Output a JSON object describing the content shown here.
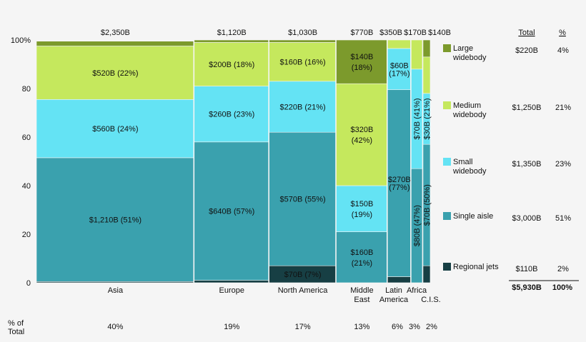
{
  "chart_data": {
    "type": "marimekko",
    "ylim": [
      0,
      100
    ],
    "y_ticks": [
      "0",
      "20",
      "40",
      "60",
      "80",
      "100%"
    ],
    "grid": false,
    "legend_placement": "right",
    "series": [
      {
        "name": "Large widebody",
        "color": "#7c9a2c",
        "total": "$220B",
        "pct": "4%"
      },
      {
        "name": "Medium widebody",
        "color": "#c5e85d",
        "total": "$1,250B",
        "pct": "21%"
      },
      {
        "name": "Small widebody",
        "color": "#64e3f4",
        "total": "$1,350B",
        "pct": "23%"
      },
      {
        "name": "Single aisle",
        "color": "#3aa1ae",
        "total": "$3,000B",
        "pct": "51%"
      },
      {
        "name": "Regional jets",
        "color": "#173f44",
        "total": "$110B",
        "pct": "2%"
      }
    ],
    "legend_headers": {
      "total": "Total",
      "pct": "%"
    },
    "grand_total": {
      "total": "$5,930B",
      "pct": "100%"
    },
    "x_row_label": [
      "% of",
      "Total"
    ],
    "categories": [
      {
        "name": [
          "Asia"
        ],
        "total": "$2,350B",
        "share_pct": 40,
        "share_label": "40%",
        "segments": {
          "Regional jets": {
            "pct": 0.5,
            "label": []
          },
          "Single aisle": {
            "pct": 51,
            "label": [
              "$1,210B (51%)"
            ]
          },
          "Small widebody": {
            "pct": 24,
            "label": [
              "$560B (24%)"
            ]
          },
          "Medium widebody": {
            "pct": 22,
            "label": [
              "$520B (22%)"
            ]
          },
          "Large widebody": {
            "pct": 2,
            "label": []
          }
        }
      },
      {
        "name": [
          "Europe"
        ],
        "total": "$1,120B",
        "share_pct": 19,
        "share_label": "19%",
        "segments": {
          "Regional jets": {
            "pct": 1,
            "label": []
          },
          "Single aisle": {
            "pct": 57,
            "label": [
              "$640B (57%)"
            ]
          },
          "Small widebody": {
            "pct": 23,
            "label": [
              "$260B (23%)"
            ]
          },
          "Medium widebody": {
            "pct": 18,
            "label": [
              "$200B (18%)"
            ]
          },
          "Large widebody": {
            "pct": 1,
            "label": []
          }
        }
      },
      {
        "name": [
          "North America"
        ],
        "total": "$1,030B",
        "share_pct": 17,
        "share_label": "17%",
        "segments": {
          "Regional jets": {
            "pct": 7,
            "label": [
              "$70B (7%)"
            ]
          },
          "Single aisle": {
            "pct": 55,
            "label": [
              "$570B (55%)"
            ]
          },
          "Small widebody": {
            "pct": 21,
            "label": [
              "$220B (21%)"
            ]
          },
          "Medium widebody": {
            "pct": 16,
            "label": [
              "$160B (16%)"
            ]
          },
          "Large widebody": {
            "pct": 1,
            "label": []
          }
        }
      },
      {
        "name": [
          "Middle",
          "East"
        ],
        "total": "$770B",
        "share_pct": 13,
        "share_label": "13%",
        "segments": {
          "Regional jets": {
            "pct": 0,
            "label": []
          },
          "Single aisle": {
            "pct": 21,
            "label": [
              "$160B",
              "(21%)"
            ]
          },
          "Small widebody": {
            "pct": 19,
            "label": [
              "$150B",
              "(19%)"
            ]
          },
          "Medium widebody": {
            "pct": 42,
            "label": [
              "$320B",
              "(42%)"
            ]
          },
          "Large widebody": {
            "pct": 18,
            "label": [
              "$140B",
              "(18%)"
            ]
          }
        }
      },
      {
        "name": [
          "Latin",
          "America"
        ],
        "total": "$350B",
        "share_pct": 6,
        "share_label": "6%",
        "segments": {
          "Regional jets": {
            "pct": 2.5,
            "label": []
          },
          "Single aisle": {
            "pct": 77,
            "label": [
              "$270B",
              "(77%)"
            ]
          },
          "Small widebody": {
            "pct": 17,
            "label": [
              "$60B",
              "(17%)"
            ]
          },
          "Medium widebody": {
            "pct": 3.5,
            "label": []
          },
          "Large widebody": {
            "pct": 0,
            "label": []
          }
        }
      },
      {
        "name": [
          "Africa"
        ],
        "total": "$170B",
        "share_pct": 3,
        "share_label": "3%",
        "segments": {
          "Regional jets": {
            "pct": 0,
            "label": []
          },
          "Single aisle": {
            "pct": 47,
            "label": [
              "$80B (47%)"
            ]
          },
          "Small widebody": {
            "pct": 41,
            "label": [
              "$70B (41%)"
            ]
          },
          "Medium widebody": {
            "pct": 12,
            "label": []
          },
          "Large widebody": {
            "pct": 0,
            "label": []
          }
        }
      },
      {
        "name": [
          "C.I.S."
        ],
        "total": "$140B",
        "share_pct": 2,
        "share_label": "2%",
        "segments": {
          "Regional jets": {
            "pct": 7,
            "label": []
          },
          "Single aisle": {
            "pct": 50,
            "label": [
              "$70B (50%)"
            ]
          },
          "Small widebody": {
            "pct": 21,
            "label": [
              "$30B (21%)"
            ]
          },
          "Medium widebody": {
            "pct": 15,
            "label": []
          },
          "Large widebody": {
            "pct": 7,
            "label": []
          }
        }
      }
    ]
  }
}
